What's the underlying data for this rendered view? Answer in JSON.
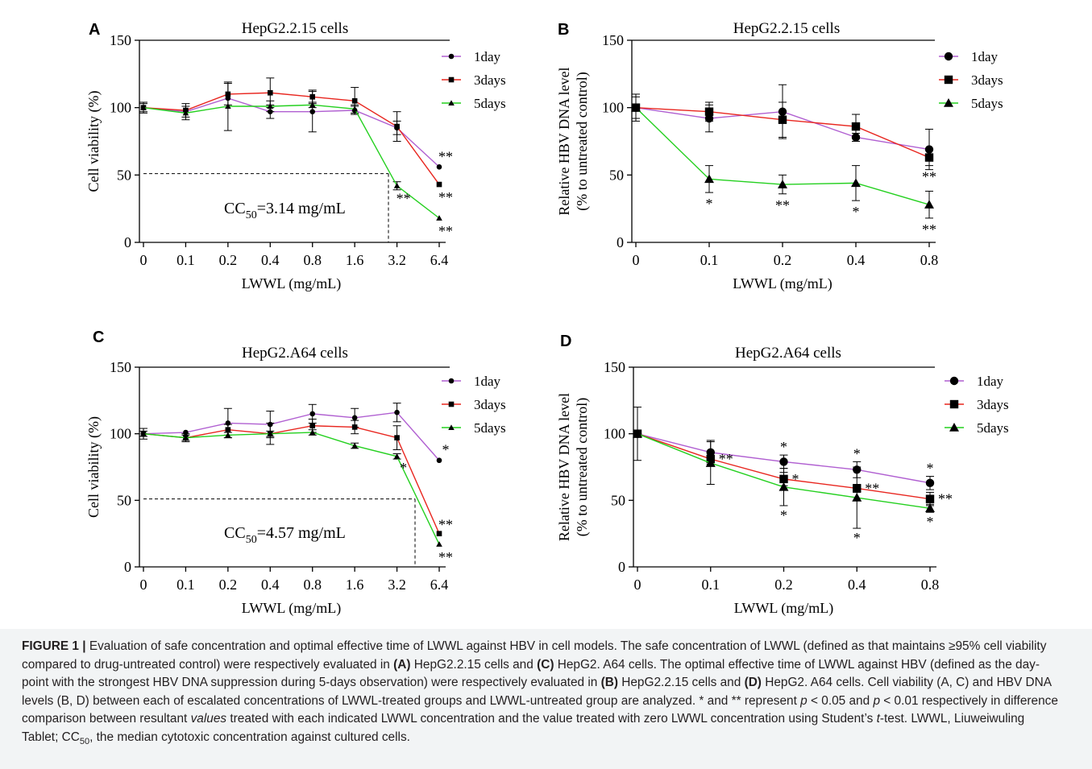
{
  "chart_data": [
    {
      "panel": "A",
      "type": "line",
      "title": "HepG2.2.15 cells",
      "xlabel": "LWWL (mg/mL)",
      "ylabel": [
        "Cell viability (%)"
      ],
      "categories": [
        "0",
        "0.1",
        "0.2",
        "0.4",
        "0.8",
        "1.6",
        "3.2",
        "6.4"
      ],
      "yticks": [
        0,
        50,
        100,
        150
      ],
      "ylim": [
        0,
        150
      ],
      "grid": false,
      "legend_position": "top-right",
      "series": [
        {
          "name": "1day",
          "color": "#b05fd1",
          "marker": "circle",
          "values": [
            100,
            97,
            107,
            97,
            97,
            98,
            85,
            56
          ],
          "errors": [
            0,
            0,
            0,
            5,
            15,
            3,
            5,
            0
          ],
          "sig": [
            "",
            "",
            "",
            "",
            "",
            "",
            "",
            "**"
          ]
        },
        {
          "name": "3days",
          "color": "#e8261f",
          "marker": "square",
          "values": [
            100,
            98,
            110,
            111,
            108,
            105,
            86,
            43
          ],
          "errors": [
            3,
            5,
            8,
            11,
            5,
            10,
            11,
            0
          ],
          "sig": [
            "",
            "",
            "",
            "",
            "",
            "",
            "",
            "**"
          ]
        },
        {
          "name": "5days",
          "color": "#24d01f",
          "marker": "triangle",
          "values": [
            100,
            96,
            101,
            101,
            102,
            99,
            42,
            18
          ],
          "errors": [
            4,
            5,
            18,
            4,
            2,
            3,
            3,
            0
          ],
          "sig": [
            "",
            "",
            "",
            "",
            "",
            "",
            "**",
            "**"
          ]
        }
      ],
      "reference": {
        "y": 51,
        "x": 3.14,
        "label": "CC",
        "label_sub": "50",
        "label_value": "=3.14 mg/mL"
      }
    },
    {
      "panel": "B",
      "type": "line",
      "title": "HepG2.2.15 cells",
      "xlabel": "LWWL (mg/mL)",
      "ylabel": [
        "Relative HBV DNA level",
        "(% to untreated control)"
      ],
      "categories": [
        "0",
        "0.1",
        "0.2",
        "0.4",
        "0.8"
      ],
      "yticks": [
        0,
        50,
        100,
        150
      ],
      "ylim": [
        0,
        150
      ],
      "grid": false,
      "legend_position": "top-right",
      "series": [
        {
          "name": "1day",
          "color": "#b05fd1",
          "marker": "circle",
          "values": [
            100,
            92,
            97,
            78,
            69
          ],
          "errors": [
            10,
            10,
            20,
            3,
            15
          ],
          "sig": [
            "",
            "",
            "",
            "",
            ""
          ]
        },
        {
          "name": "3days",
          "color": "#e8261f",
          "marker": "square",
          "values": [
            100,
            97,
            91,
            86,
            63
          ],
          "errors": [
            8,
            7,
            13,
            9,
            6
          ],
          "sig": [
            "",
            "",
            "",
            "",
            "**"
          ]
        },
        {
          "name": "5days",
          "color": "#24d01f",
          "marker": "triangle",
          "values": [
            100,
            47,
            43,
            44,
            28
          ],
          "errors": [
            0,
            10,
            7,
            13,
            10
          ],
          "sig": [
            "",
            "*",
            "**",
            "*",
            "**"
          ]
        }
      ]
    },
    {
      "panel": "C",
      "type": "line",
      "title": "HepG2.A64 cells",
      "xlabel": "LWWL (mg/mL)",
      "ylabel": [
        "Cell viability (%)"
      ],
      "categories": [
        "0",
        "0.1",
        "0.2",
        "0.4",
        "0.8",
        "1.6",
        "3.2",
        "6.4"
      ],
      "yticks": [
        0,
        50,
        100,
        150
      ],
      "ylim": [
        0,
        150
      ],
      "grid": false,
      "legend_position": "top-right",
      "series": [
        {
          "name": "1day",
          "color": "#b05fd1",
          "marker": "circle",
          "values": [
            100,
            101,
            108,
            107,
            115,
            112,
            116,
            80
          ],
          "errors": [
            0,
            0,
            11,
            10,
            7,
            7,
            7,
            0
          ],
          "sig": [
            "",
            "",
            "",
            "",
            "",
            "",
            "",
            "*"
          ]
        },
        {
          "name": "3days",
          "color": "#e8261f",
          "marker": "square",
          "values": [
            100,
            97,
            103,
            100,
            106,
            105,
            97,
            25
          ],
          "errors": [
            4,
            3,
            4,
            8,
            5,
            5,
            9,
            0
          ],
          "sig": [
            "",
            "",
            "",
            "",
            "",
            "",
            "",
            "**"
          ]
        },
        {
          "name": "5days",
          "color": "#24d01f",
          "marker": "triangle",
          "values": [
            100,
            97,
            99,
            100,
            101,
            91,
            83,
            17
          ],
          "errors": [
            2,
            2,
            2,
            2,
            2,
            2,
            2,
            0
          ],
          "sig": [
            "",
            "",
            "",
            "",
            "",
            "",
            "*",
            "**"
          ]
        }
      ],
      "reference": {
        "y": 51,
        "x": 4.57,
        "label": "CC",
        "label_sub": "50",
        "label_value": "=4.57 mg/mL"
      }
    },
    {
      "panel": "D",
      "type": "line",
      "title": "HepG2.A64 cells",
      "xlabel": "LWWL (mg/mL)",
      "ylabel": [
        "Relative HBV DNA level",
        "(% to untreated control)"
      ],
      "categories": [
        "0",
        "0.1",
        "0.2",
        "0.4",
        "0.8"
      ],
      "yticks": [
        0,
        50,
        100,
        150
      ],
      "ylim": [
        0,
        150
      ],
      "grid": false,
      "legend_position": "top-right",
      "series": [
        {
          "name": "1day",
          "color": "#b05fd1",
          "marker": "circle",
          "values": [
            100,
            86,
            79,
            73,
            63
          ],
          "errors": [
            20,
            9,
            5,
            6,
            5
          ],
          "sig": [
            "",
            "",
            "*",
            "*",
            "*"
          ]
        },
        {
          "name": "3days",
          "color": "#e8261f",
          "marker": "square",
          "values": [
            100,
            81,
            66,
            59,
            51
          ],
          "errors": [
            0,
            5,
            5,
            3,
            5
          ],
          "sig": [
            "",
            "**",
            "*",
            "**",
            "**"
          ]
        },
        {
          "name": "5days",
          "color": "#24d01f",
          "marker": "triangle",
          "values": [
            100,
            78,
            60,
            52,
            44
          ],
          "errors": [
            0,
            16,
            14,
            23,
            3
          ],
          "sig": [
            "",
            "",
            "*",
            "*",
            "*"
          ]
        }
      ]
    }
  ],
  "caption": {
    "figure_label": "FIGURE 1 |",
    "t1": " Evaluation of safe concentration and optimal effective time of LWWL against HBV in cell models. The safe concentration of LWWL (defined as that maintains ≥95% cell viability compared to drug-untreated control) were respectively evaluated in ",
    "ref_a": "(A)",
    "t2": " HepG2.2.15 cells and ",
    "ref_c": "(C)",
    "t3": " HepG2. A64 cells. The optimal effective time of LWWL against HBV (defined as the day-point with the strongest HBV DNA suppression during 5-days observation) were respectively evaluated in ",
    "ref_b": "(B)",
    "t4": " HepG2.2.15 cells and ",
    "ref_d": "(D)",
    "t5": " HepG2. A64 cells. Cell viability (A, C) and HBV DNA levels (B, D) between each of escalated concentrations of LWWL-treated groups and LWWL-untreated group are analyzed. * and ** represent ",
    "p1": "p",
    "t6": " < 0.05 and ",
    "p2": "p",
    "t7": " < 0.01 respectively in difference comparison between resultant ",
    "values_word": "values",
    "t8": " treated with each indicated LWWL concentration and the value treated with zero LWWL concentration using Student’s ",
    "t_word": "t",
    "t9": "-test. LWWL, Liuweiwuling Tablet; CC",
    "sub50": "50",
    "t10": ", the median cytotoxic concentration against cultured cells."
  }
}
